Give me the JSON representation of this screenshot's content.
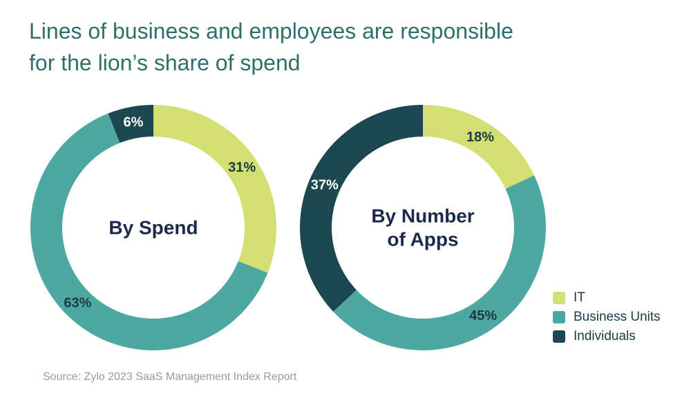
{
  "title_lines": [
    "Lines of business and employees are responsible",
    "for the lion’s share of spend"
  ],
  "colors": {
    "IT": "#d3df72",
    "Business Units": "#4ea8a2",
    "Individuals": "#1d4750",
    "center_text": "#1b2a4a",
    "label_text": "#1b3a44"
  },
  "legend": [
    "IT",
    "Business Units",
    "Individuals"
  ],
  "source": "Source: Zylo 2023 SaaS Management Index Report",
  "chart_data": [
    {
      "type": "pie",
      "variant": "donut",
      "title": "By Spend",
      "title_lines": [
        "By Spend"
      ],
      "slices": [
        {
          "label": "IT",
          "value": 31,
          "text": "31%"
        },
        {
          "label": "Business Units",
          "value": 63,
          "text": "63%"
        },
        {
          "label": "Individuals",
          "value": 6,
          "text": "6%"
        }
      ]
    },
    {
      "type": "pie",
      "variant": "donut",
      "title": "By Number of Apps",
      "title_lines": [
        "By Number",
        "of Apps"
      ],
      "slices": [
        {
          "label": "IT",
          "value": 18,
          "text": "18%"
        },
        {
          "label": "Business Units",
          "value": 45,
          "text": "45%"
        },
        {
          "label": "Individuals",
          "value": 37,
          "text": "37%"
        }
      ]
    }
  ]
}
